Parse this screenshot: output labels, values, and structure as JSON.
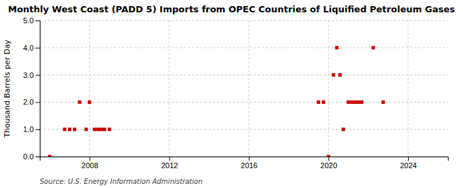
{
  "chart_data": {
    "type": "scatter",
    "title": "Monthly West Coast (PADD 5) Imports from OPEC Countries of Liquified Petroleum Gases",
    "ylabel": "Thousand Barrels per Day",
    "source": "Source: U.S. Energy Information Administration",
    "color": "#cc0000",
    "marker": "square",
    "grid": true,
    "xlim": [
      2005.5,
      2026.0
    ],
    "xticks": [
      2008,
      2012,
      2016,
      2020,
      2024
    ],
    "ylim": [
      0.0,
      5.0
    ],
    "yticks": [
      {
        "value": 0.0,
        "label": "0.0"
      },
      {
        "value": 1.0,
        "label": "1.0"
      },
      {
        "value": 2.0,
        "label": "2.0"
      },
      {
        "value": 3.0,
        "label": "3.0"
      },
      {
        "value": 4.0,
        "label": "4.0"
      },
      {
        "value": 5.0,
        "label": "5.0"
      }
    ],
    "x": [
      2006.0,
      2006.75,
      2007.0,
      2007.25,
      2007.5,
      2007.83,
      2008.0,
      2008.25,
      2008.42,
      2008.58,
      2008.75,
      2009.0,
      2019.5,
      2019.75,
      2020.0,
      2020.25,
      2020.42,
      2020.58,
      2020.75,
      2021.0,
      2021.17,
      2021.33,
      2021.5,
      2021.67,
      2022.25,
      2022.75
    ],
    "values": [
      0.0,
      1.0,
      1.0,
      1.0,
      2.0,
      1.0,
      2.0,
      1.0,
      1.0,
      1.0,
      1.0,
      1.0,
      2.0,
      2.0,
      0.0,
      3.0,
      4.0,
      3.0,
      1.0,
      2.0,
      2.0,
      2.0,
      2.0,
      2.0,
      4.0,
      2.0
    ]
  }
}
